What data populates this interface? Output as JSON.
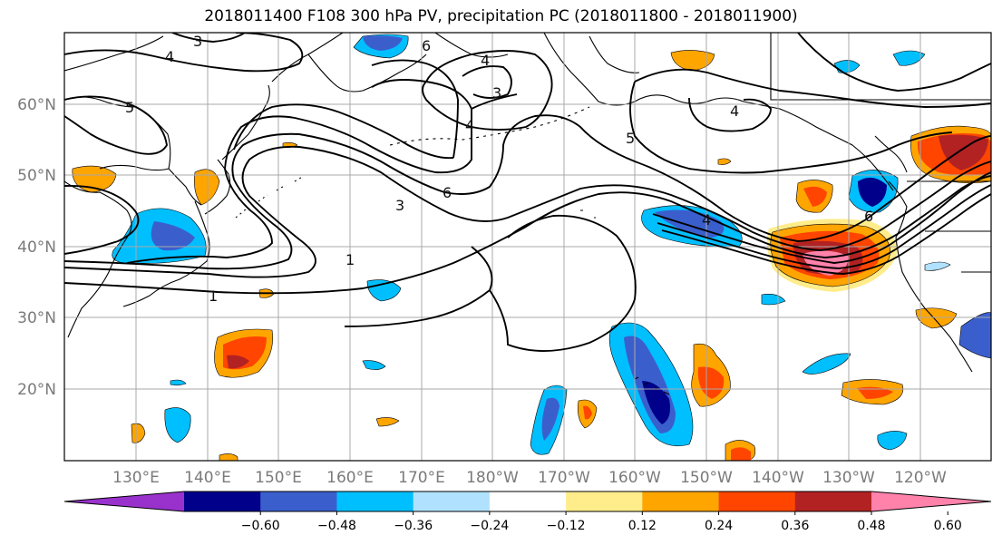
{
  "title": "2018011400 F108 300 hPa PV, precipitation PC (2018011800 - 2018011900)",
  "lat_labels": [
    "60°N",
    "50°N",
    "40°N",
    "30°N",
    "20°N"
  ],
  "lon_labels": [
    "130°E",
    "140°E",
    "150°E",
    "160°E",
    "170°E",
    "180°W",
    "170°W",
    "160°W",
    "150°W",
    "140°W",
    "130°W",
    "120°W"
  ],
  "contour_labels": [
    "3",
    "4",
    "6",
    "4",
    "3",
    "5",
    "4",
    "5",
    "6",
    "4",
    "3",
    "1",
    "1",
    "6",
    "4"
  ],
  "colorbar": {
    "ticks": [
      "−0.60",
      "−0.48",
      "−0.36",
      "−0.24",
      "−0.12",
      "0.12",
      "0.24",
      "0.36",
      "0.48",
      "0.60"
    ],
    "colors": [
      "#9932cc",
      "#00008b",
      "#3a5fcd",
      "#00bfff",
      "#b0e2ff",
      "#ffffff",
      "#ffec8b",
      "#ffa500",
      "#ff4500",
      "#b22222",
      "#ff82ab"
    ]
  },
  "colors": {
    "land_outline": "#000000",
    "grid": "#a8a8a8",
    "contour": "#000000"
  }
}
